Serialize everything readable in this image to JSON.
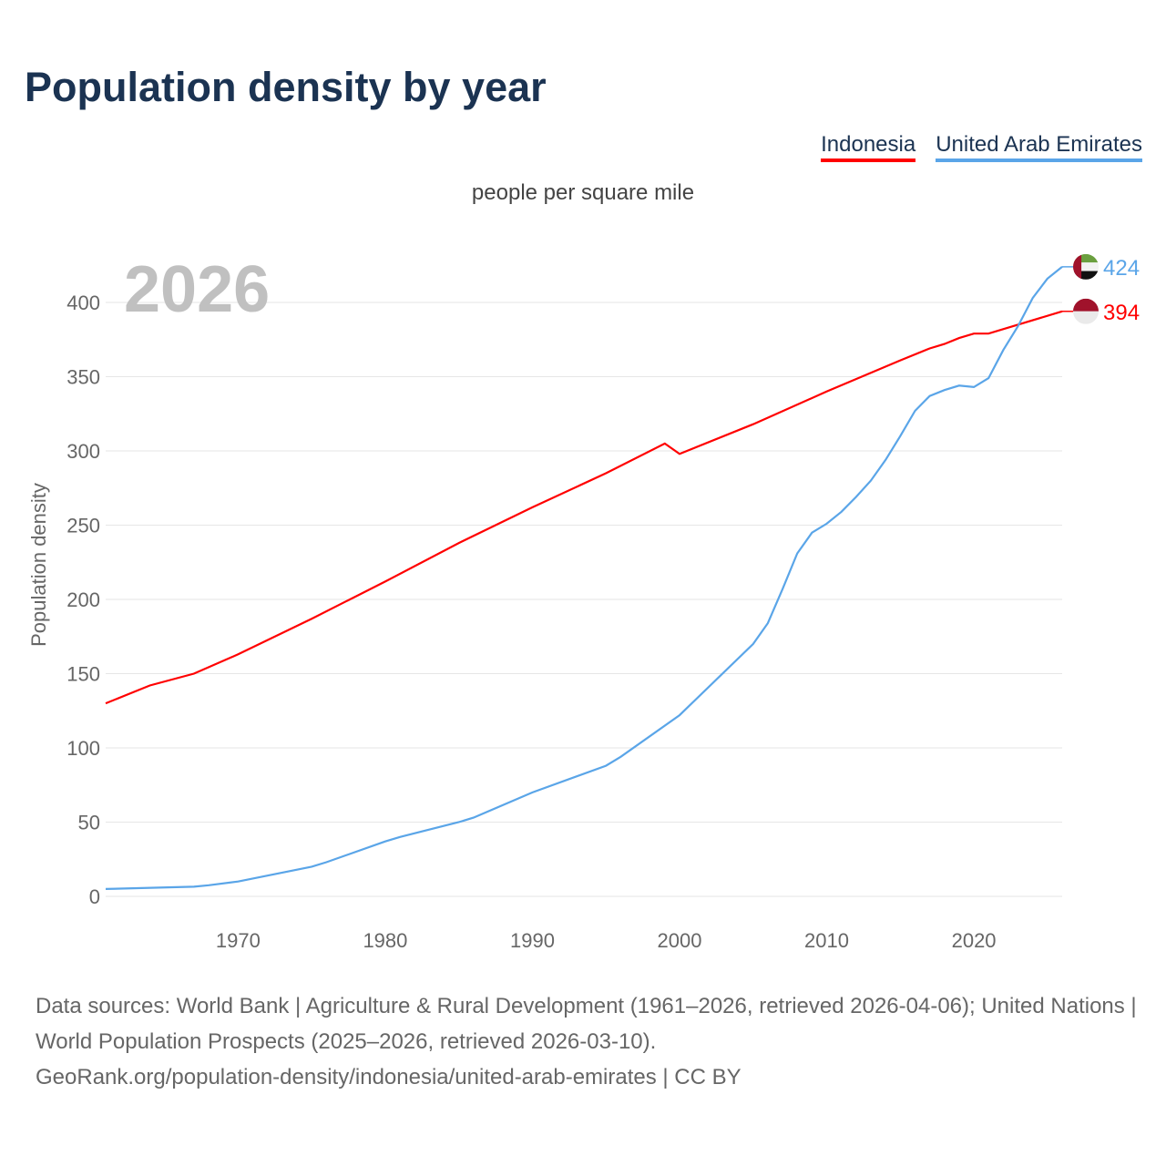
{
  "title": "Population density by year",
  "unit_label": "people per square mile",
  "footer": {
    "line1": "Data sources: World Bank | Agriculture & Rural Development (1961–2026, retrieved 2026-04-06); United Nations | World Population Prospects (2025–2026, retrieved 2026-03-10).",
    "line2": "GeoRank.org/population-density/indonesia/united-arab-emirates | CC BY"
  },
  "chart_data": {
    "type": "line",
    "title": "Population density by year",
    "ylabel": "Population density",
    "xlabel": "",
    "year_watermark": "2026",
    "xlim": [
      1961,
      2026
    ],
    "ylim": [
      0,
      430
    ],
    "xticks": [
      1970,
      1980,
      1990,
      2000,
      2010,
      2020
    ],
    "yticks": [
      0,
      50,
      100,
      150,
      200,
      250,
      300,
      350,
      400
    ],
    "grid": true,
    "legend_position": "top-right",
    "series": [
      {
        "name": "Indonesia",
        "color": "#ff0000",
        "end_label": "394",
        "x": [
          1961,
          1964,
          1967,
          1970,
          1975,
          1980,
          1985,
          1990,
          1995,
          1999,
          2000,
          2005,
          2010,
          2015,
          2017,
          2018,
          2019,
          2020,
          2021,
          2026
        ],
        "y": [
          130,
          142,
          150,
          163,
          187,
          212,
          238,
          262,
          285,
          305,
          298,
          318,
          340,
          361,
          369,
          372,
          376,
          379,
          379,
          394
        ]
      },
      {
        "name": "United Arab Emirates",
        "color": "#5aa5e8",
        "end_label": "424",
        "x": [
          1961,
          1967,
          1968,
          1970,
          1975,
          1976,
          1980,
          1981,
          1985,
          1986,
          1990,
          1995,
          1996,
          2000,
          2005,
          2006,
          2007,
          2008,
          2009,
          2010,
          2011,
          2012,
          2013,
          2014,
          2015,
          2016,
          2017,
          2018,
          2019,
          2020,
          2021,
          2022,
          2023,
          2024,
          2025,
          2026
        ],
        "y": [
          5,
          6.5,
          7.5,
          10,
          20,
          23,
          37,
          40,
          50,
          53,
          70,
          88,
          94,
          122,
          170,
          184,
          207,
          231,
          245,
          251,
          259,
          269,
          280,
          294,
          310,
          327,
          337,
          341,
          344,
          343,
          349,
          368,
          384,
          403,
          416,
          424
        ]
      }
    ]
  }
}
